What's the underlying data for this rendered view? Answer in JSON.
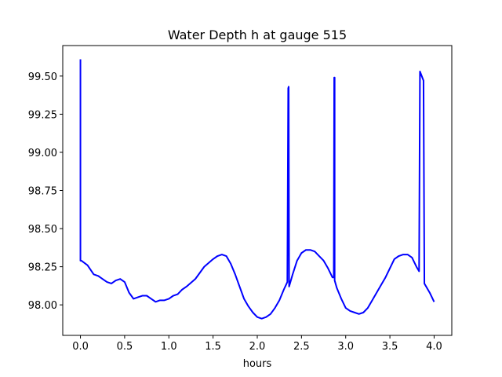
{
  "chart_data": {
    "type": "line",
    "title": "Water Depth h at gauge 515",
    "xlabel": "hours",
    "ylabel": "",
    "xlim": [
      -0.2,
      4.2
    ],
    "ylim": [
      97.8,
      99.7
    ],
    "xticks": [
      0.0,
      0.5,
      1.0,
      1.5,
      2.0,
      2.5,
      3.0,
      3.5,
      4.0
    ],
    "xtick_labels": [
      "0.0",
      "0.5",
      "1.0",
      "1.5",
      "2.0",
      "2.5",
      "3.0",
      "3.5",
      "4.0"
    ],
    "yticks": [
      98.0,
      98.25,
      98.5,
      98.75,
      99.0,
      99.25,
      99.5
    ],
    "ytick_labels": [
      "98.00",
      "98.25",
      "98.50",
      "98.75",
      "99.00",
      "99.25",
      "99.50"
    ],
    "grid": false,
    "series": [
      {
        "color": "#0000ff",
        "x": [
          0.0,
          0.0,
          0.01,
          0.08,
          0.15,
          0.2,
          0.25,
          0.3,
          0.35,
          0.4,
          0.45,
          0.5,
          0.55,
          0.6,
          0.65,
          0.7,
          0.75,
          0.8,
          0.85,
          0.9,
          0.95,
          1.0,
          1.05,
          1.1,
          1.15,
          1.2,
          1.3,
          1.4,
          1.5,
          1.55,
          1.6,
          1.65,
          1.7,
          1.75,
          1.8,
          1.85,
          1.9,
          1.95,
          2.0,
          2.05,
          2.1,
          2.15,
          2.2,
          2.25,
          2.3,
          2.34,
          2.35,
          2.355,
          2.36,
          2.36,
          2.4,
          2.45,
          2.5,
          2.55,
          2.6,
          2.65,
          2.7,
          2.75,
          2.8,
          2.85,
          2.865,
          2.87,
          2.875,
          2.875,
          2.9,
          2.95,
          3.0,
          3.05,
          3.1,
          3.15,
          3.2,
          3.25,
          3.3,
          3.35,
          3.4,
          3.45,
          3.5,
          3.55,
          3.6,
          3.65,
          3.7,
          3.75,
          3.8,
          3.83,
          3.84,
          3.88,
          3.89,
          3.95,
          4.0
        ],
        "y": [
          99.61,
          98.29,
          98.29,
          98.26,
          98.2,
          98.19,
          98.17,
          98.15,
          98.14,
          98.16,
          98.17,
          98.15,
          98.08,
          98.04,
          98.05,
          98.06,
          98.06,
          98.04,
          98.02,
          98.03,
          98.03,
          98.04,
          98.06,
          98.07,
          98.1,
          98.12,
          98.17,
          98.25,
          98.3,
          98.32,
          98.33,
          98.32,
          98.27,
          98.2,
          98.12,
          98.04,
          97.99,
          97.95,
          97.92,
          97.91,
          97.92,
          97.94,
          97.98,
          98.03,
          98.1,
          98.15,
          99.42,
          99.43,
          98.12,
          98.12,
          98.2,
          98.29,
          98.34,
          98.36,
          98.36,
          98.35,
          98.32,
          98.29,
          98.24,
          98.18,
          98.18,
          99.49,
          99.49,
          98.16,
          98.11,
          98.04,
          97.98,
          97.96,
          97.95,
          97.94,
          97.95,
          97.98,
          98.03,
          98.08,
          98.13,
          98.18,
          98.24,
          98.3,
          98.32,
          98.33,
          98.33,
          98.31,
          98.25,
          98.22,
          99.53,
          99.47,
          98.14,
          98.08,
          98.02
        ]
      }
    ]
  }
}
